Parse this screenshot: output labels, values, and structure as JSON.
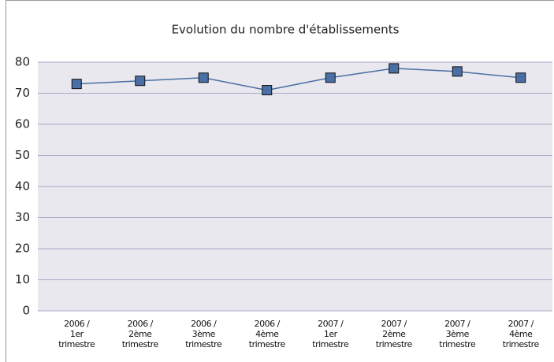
{
  "chart_data": {
    "type": "line",
    "title": "Evolution du nombre d'établissements",
    "categories": [
      "2006 /\n1er\ntrimestre",
      "2006 /\n2ème\ntrimestre",
      "2006 /\n3ème\ntrimestre",
      "2006 /\n4ème\ntrimestre",
      "2007 /\n1er\ntrimestre",
      "2007 /\n2ème\ntrimestre",
      "2007 /\n3ème\ntrimestre",
      "2007 /\n4ème\ntrimestre"
    ],
    "series": [
      {
        "name": "Nombre d'établissements",
        "color": "#4a6fa5",
        "values": [
          73,
          74,
          75,
          71,
          75,
          78,
          77,
          75
        ]
      }
    ],
    "ylim": [
      0,
      80
    ],
    "yticks": [
      0,
      10,
      20,
      30,
      40,
      50,
      60,
      70,
      80
    ],
    "grid": true
  }
}
